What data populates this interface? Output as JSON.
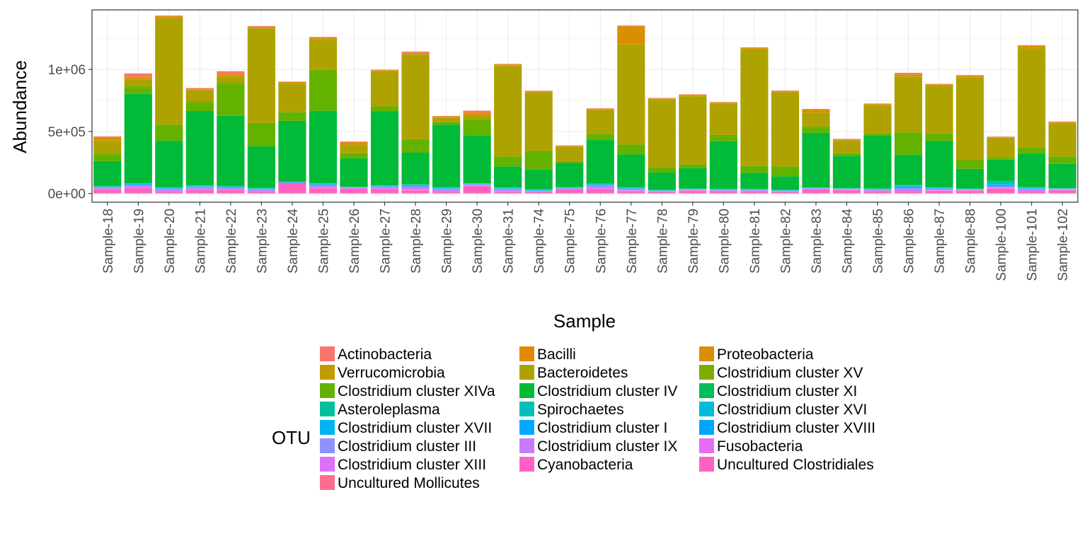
{
  "chart_data": {
    "type": "bar",
    "stacked": true,
    "xlabel": "Sample",
    "ylabel": "Abundance",
    "ylim": [
      -70000,
      1480000
    ],
    "yticks": [
      0,
      500000,
      1000000
    ],
    "ytick_labels": [
      "0e+00",
      "5e+05",
      "1e+06"
    ],
    "grid": true,
    "legend_position": "bottom",
    "legend_title": "OTU",
    "categories": [
      "Sample-18",
      "Sample-19",
      "Sample-20",
      "Sample-21",
      "Sample-22",
      "Sample-23",
      "Sample-24",
      "Sample-25",
      "Sample-26",
      "Sample-27",
      "Sample-28",
      "Sample-29",
      "Sample-30",
      "Sample-31",
      "Sample-74",
      "Sample-75",
      "Sample-76",
      "Sample-77",
      "Sample-78",
      "Sample-79",
      "Sample-80",
      "Sample-81",
      "Sample-82",
      "Sample-83",
      "Sample-84",
      "Sample-85",
      "Sample-86",
      "Sample-87",
      "Sample-88",
      "Sample-100",
      "Sample-101",
      "Sample-102"
    ],
    "series": [
      {
        "name": "Uncultured Mollicutes",
        "color": "#FF6C91",
        "values": [
          5000,
          5000,
          5000,
          5000,
          5000,
          5000,
          5000,
          5000,
          5000,
          5000,
          5000,
          5000,
          5000,
          5000,
          5000,
          5000,
          5000,
          5000,
          5000,
          5000,
          5000,
          5000,
          5000,
          5000,
          5000,
          5000,
          5000,
          5000,
          5000,
          5000,
          5000,
          5000
        ]
      },
      {
        "name": "Uncultured Clostridiales",
        "color": "#FF61C3",
        "values": [
          25000,
          35000,
          5000,
          20000,
          20000,
          5000,
          80000,
          35000,
          30000,
          30000,
          20000,
          5000,
          55000,
          5000,
          5000,
          25000,
          25000,
          10000,
          5000,
          15000,
          10000,
          10000,
          5000,
          25000,
          20000,
          10000,
          10000,
          15000,
          15000,
          35000,
          10000,
          20000
        ]
      },
      {
        "name": "Cyanobacteria",
        "color": "#FF61C9",
        "values": [
          5000,
          5000,
          3000,
          5000,
          5000,
          3000,
          0,
          5000,
          3000,
          3000,
          3000,
          3000,
          3000,
          3000,
          3000,
          3000,
          5000,
          5000,
          3000,
          3000,
          3000,
          3000,
          3000,
          3000,
          3000,
          3000,
          3000,
          3000,
          3000,
          3000,
          3000,
          3000
        ]
      },
      {
        "name": "Fusobacteria",
        "color": "#E76BF3",
        "values": [
          3000,
          5000,
          5000,
          5000,
          3000,
          5000,
          0,
          5000,
          3000,
          3000,
          3000,
          5000,
          3000,
          3000,
          3000,
          3000,
          5000,
          3000,
          3000,
          3000,
          3000,
          3000,
          3000,
          3000,
          3000,
          3000,
          3000,
          3000,
          3000,
          3000,
          3000,
          3000
        ]
      },
      {
        "name": "Clostridium cluster XIII",
        "color": "#DC71FA",
        "values": [
          2000,
          3000,
          3000,
          3000,
          2000,
          3000,
          2000,
          3000,
          2000,
          2000,
          2000,
          3000,
          2000,
          3000,
          2000,
          2000,
          3000,
          3000,
          2000,
          2000,
          2000,
          2000,
          2000,
          2000,
          2000,
          2000,
          3000,
          2000,
          2000,
          2000,
          3000,
          2000
        ]
      },
      {
        "name": "Clostridium cluster IX",
        "color": "#C77CFF",
        "values": [
          2000,
          8000,
          10000,
          5000,
          5000,
          5000,
          0,
          5000,
          2000,
          5000,
          20000,
          10000,
          2000,
          10000,
          2000,
          2000,
          10000,
          5000,
          2000,
          2000,
          2000,
          2000,
          2000,
          2000,
          2000,
          2000,
          10000,
          5000,
          2000,
          5000,
          5000,
          2000
        ]
      },
      {
        "name": "Clostridium cluster III",
        "color": "#8F91FF",
        "values": [
          5000,
          5000,
          5000,
          5000,
          5000,
          5000,
          0,
          5000,
          2000,
          5000,
          5000,
          5000,
          2000,
          5000,
          2000,
          2000,
          10000,
          5000,
          2000,
          2000,
          2000,
          2000,
          2000,
          2000,
          2000,
          5000,
          10000,
          5000,
          2000,
          5000,
          5000,
          2000
        ]
      },
      {
        "name": "Clostridium cluster XVIII",
        "color": "#00A5FF",
        "values": [
          2000,
          3000,
          2000,
          3000,
          2000,
          2000,
          0,
          3000,
          1000,
          2000,
          3000,
          2000,
          2000,
          2000,
          2000,
          2000,
          3000,
          2000,
          1000,
          1000,
          2000,
          2000,
          1000,
          1000,
          1000,
          2000,
          5000,
          2000,
          1000,
          5000,
          3000,
          1000
        ]
      },
      {
        "name": "Clostridium cluster I",
        "color": "#00A9FF",
        "values": [
          2000,
          3000,
          2000,
          3000,
          3000,
          2000,
          5000,
          3000,
          1000,
          2000,
          3000,
          2000,
          2000,
          3000,
          2000,
          2000,
          3000,
          2000,
          1000,
          1000,
          2000,
          2000,
          1000,
          1000,
          1000,
          2000,
          5000,
          2000,
          1000,
          5000,
          3000,
          1000
        ]
      },
      {
        "name": "Clostridium cluster XVII",
        "color": "#00B4EF",
        "values": [
          2000,
          3000,
          2000,
          3000,
          3000,
          2000,
          0,
          5000,
          1000,
          2000,
          2000,
          2000,
          2000,
          2000,
          2000,
          2000,
          3000,
          2000,
          1000,
          1000,
          2000,
          2000,
          1000,
          1000,
          1000,
          2000,
          5000,
          2000,
          1000,
          5000,
          3000,
          1000
        ]
      },
      {
        "name": "Clostridium cluster XVI",
        "color": "#00BCD8",
        "values": [
          2000,
          2000,
          2000,
          2000,
          2000,
          2000,
          0,
          2000,
          1000,
          2000,
          2000,
          2000,
          2000,
          2000,
          2000,
          1000,
          3000,
          2000,
          1000,
          1000,
          1000,
          1000,
          1000,
          1000,
          1000,
          1000,
          3000,
          1000,
          1000,
          5000,
          2000,
          1000
        ]
      },
      {
        "name": "Spirochaetes",
        "color": "#00C0B9",
        "values": [
          2000,
          2000,
          2000,
          2000,
          2000,
          2000,
          0,
          2000,
          1000,
          2000,
          2000,
          2000,
          1000,
          2000,
          1000,
          1000,
          2000,
          2000,
          1000,
          1000,
          1000,
          1000,
          1000,
          1000,
          1000,
          1000,
          2000,
          1000,
          1000,
          15000,
          2000,
          1000
        ]
      },
      {
        "name": "Asteroleplasma",
        "color": "#00C19A",
        "values": [
          2000,
          2000,
          2000,
          2000,
          2000,
          2000,
          2000,
          2000,
          1000,
          2000,
          2000,
          2000,
          1000,
          2000,
          1000,
          1000,
          2000,
          2000,
          1000,
          1000,
          1000,
          1000,
          1000,
          1000,
          1000,
          1000,
          2000,
          1000,
          1000,
          5000,
          2000,
          1000
        ]
      },
      {
        "name": "Clostridium cluster XI",
        "color": "#00BD5C",
        "values": [
          2000,
          2000,
          2000,
          2000,
          2000,
          2000,
          2000,
          2000,
          1000,
          2000,
          2000,
          2000,
          1000,
          2000,
          1000,
          1000,
          2000,
          2000,
          1000,
          1000,
          1000,
          1000,
          1000,
          1000,
          1000,
          1000,
          2000,
          1000,
          1000,
          5000,
          2000,
          1000
        ]
      },
      {
        "name": "Clostridium cluster IV",
        "color": "#00BA38",
        "values": [
          200000,
          720000,
          375000,
          600000,
          565000,
          335000,
          490000,
          585000,
          230000,
          595000,
          255000,
          505000,
          385000,
          170000,
          160000,
          195000,
          350000,
          265000,
          140000,
          165000,
          385000,
          130000,
          110000,
          440000,
          260000,
          425000,
          245000,
          375000,
          160000,
          170000,
          270000,
          195000
        ]
      },
      {
        "name": "Clostridium cluster XIVa",
        "color": "#64B200",
        "values": [
          60000,
          50000,
          130000,
          60000,
          250000,
          190000,
          70000,
          330000,
          40000,
          40000,
          110000,
          20000,
          130000,
          80000,
          150000,
          15000,
          50000,
          80000,
          45000,
          30000,
          50000,
          55000,
          80000,
          50000,
          20000,
          20000,
          180000,
          60000,
          70000,
          20000,
          50000,
          60000
        ]
      },
      {
        "name": "Clostridium cluster XV",
        "color": "#7CAE00",
        "values": [
          0,
          15000,
          0,
          20000,
          20000,
          0,
          0,
          0,
          0,
          0,
          0,
          0,
          0,
          0,
          0,
          0,
          0,
          0,
          0,
          0,
          0,
          0,
          0,
          0,
          0,
          0,
          0,
          0,
          0,
          0,
          0,
          0
        ]
      },
      {
        "name": "Bacteroidetes",
        "color": "#AEA200",
        "values": [
          100000,
          50000,
          860000,
          80000,
          40000,
          760000,
          230000,
          240000,
          65000,
          280000,
          680000,
          35000,
          30000,
          730000,
          470000,
          110000,
          190000,
          800000,
          540000,
          550000,
          250000,
          940000,
          595000,
          110000,
          100000,
          225000,
          450000,
          385000,
          665000,
          150000,
          795000,
          265000
        ]
      },
      {
        "name": "Verrucomicrobia",
        "color": "#C49A00",
        "values": [
          15000,
          10000,
          5000,
          10000,
          10000,
          5000,
          5000,
          10000,
          5000,
          5000,
          5000,
          5000,
          5000,
          5000,
          5000,
          5000,
          5000,
          10000,
          5000,
          5000,
          5000,
          5000,
          5000,
          5000,
          5000,
          5000,
          5000,
          5000,
          5000,
          5000,
          10000,
          5000
        ]
      },
      {
        "name": "Proteobacteria",
        "color": "#D89000",
        "values": [
          15000,
          10000,
          5000,
          5000,
          10000,
          5000,
          5000,
          5000,
          15000,
          5000,
          5000,
          5000,
          10000,
          5000,
          5000,
          5000,
          5000,
          140000,
          5000,
          5000,
          5000,
          5000,
          5000,
          20000,
          5000,
          5000,
          10000,
          5000,
          10000,
          5000,
          10000,
          5000
        ]
      },
      {
        "name": "Bacilli",
        "color": "#E58700",
        "values": [
          5000,
          5000,
          5000,
          5000,
          10000,
          5000,
          3000,
          5000,
          5000,
          3000,
          5000,
          3000,
          10000,
          3000,
          3000,
          3000,
          3000,
          5000,
          3000,
          3000,
          3000,
          3000,
          3000,
          5000,
          3000,
          3000,
          5000,
          3000,
          3000,
          3000,
          5000,
          3000
        ]
      },
      {
        "name": "Actinobacteria",
        "color": "#F8766D",
        "values": [
          5000,
          25000,
          5000,
          5000,
          20000,
          5000,
          3000,
          5000,
          5000,
          3000,
          10000,
          3000,
          15000,
          3000,
          3000,
          3000,
          3000,
          5000,
          3000,
          3000,
          3000,
          3000,
          3000,
          3000,
          3000,
          3000,
          10000,
          3000,
          3000,
          3000,
          5000,
          3000
        ]
      }
    ],
    "legend_entries": [
      "Actinobacteria",
      "Bacilli",
      "Proteobacteria",
      "Verrucomicrobia",
      "Bacteroidetes",
      "Clostridium cluster XV",
      "Clostridium cluster XIVa",
      "Clostridium cluster IV",
      "Clostridium cluster XI",
      "Asteroleplasma",
      "Spirochaetes",
      "Clostridium cluster XVI",
      "Clostridium cluster XVII",
      "Clostridium cluster I",
      "Clostridium cluster XVIII",
      "Clostridium cluster III",
      "Clostridium cluster IX",
      "Fusobacteria",
      "Clostridium cluster XIII",
      "Cyanobacteria",
      "Uncultured Clostridiales",
      "Uncultured Mollicutes"
    ]
  }
}
